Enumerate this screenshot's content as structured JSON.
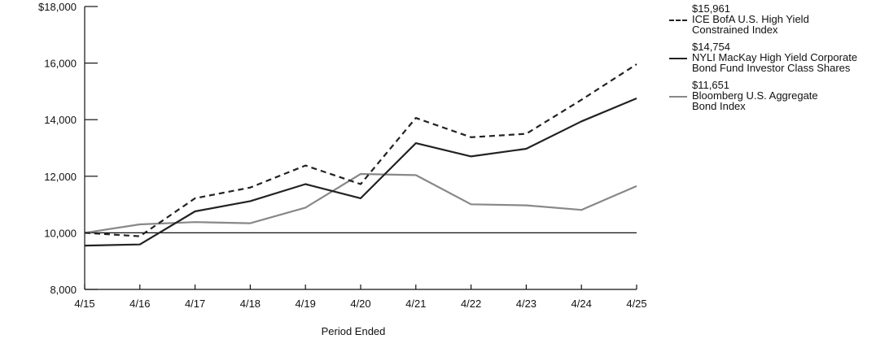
{
  "chart_data": {
    "type": "line",
    "title": "",
    "xlabel": "Period Ended",
    "ylabel": "",
    "categories": [
      "4/15",
      "4/16",
      "4/17",
      "4/18",
      "4/19",
      "4/20",
      "4/21",
      "4/22",
      "4/23",
      "4/24",
      "4/25"
    ],
    "ylim": [
      8000,
      18000
    ],
    "yticks": [
      8000,
      10000,
      12000,
      14000,
      16000,
      18000
    ],
    "ytick_labels": [
      "8,000",
      "10,000",
      "12,000",
      "14,000",
      "16,000",
      "$18,000"
    ],
    "reference_line": 10000,
    "grid": false,
    "legend_position": "right",
    "series": [
      {
        "name": "ICE BofA U.S. High Yield Constrained Index",
        "end_value_label": "$15,961",
        "color": "#222222",
        "dash": "dashed",
        "values": [
          10000,
          9880,
          11220,
          11600,
          12380,
          11720,
          14060,
          13380,
          13500,
          14700,
          15961
        ]
      },
      {
        "name": "NYLI MacKay High Yield Corporate Bond Fund Investor Class Shares",
        "end_value_label": "$14,754",
        "color": "#222222",
        "dash": "solid",
        "values": [
          9550,
          9590,
          10760,
          11120,
          11720,
          11220,
          13170,
          12700,
          12970,
          13940,
          14754
        ]
      },
      {
        "name": "Bloomberg U.S. Aggregate Bond Index",
        "end_value_label": "$11,651",
        "color": "#888888",
        "dash": "solid",
        "values": [
          10000,
          10300,
          10380,
          10340,
          10890,
          12080,
          12040,
          11010,
          10970,
          10810,
          11651
        ]
      }
    ]
  },
  "legend_entries": [
    {
      "value": "$15,961",
      "name_lines": [
        "ICE BofA U.S. High Yield",
        "Constrained Index"
      ]
    },
    {
      "value": "$14,754",
      "name_lines": [
        "NYLI MacKay High Yield Corporate",
        "Bond Fund Investor Class Shares"
      ]
    },
    {
      "value": "$11,651",
      "name_lines": [
        "Bloomberg U.S. Aggregate",
        "Bond Index"
      ]
    }
  ]
}
